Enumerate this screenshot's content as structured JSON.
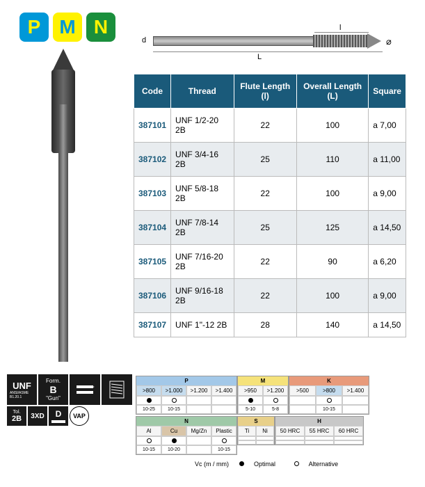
{
  "badges": {
    "p": "P",
    "m": "M",
    "n": "N"
  },
  "dimensions": {
    "d": "d",
    "L": "L",
    "l": "l",
    "dia": "⌀"
  },
  "table": {
    "headers": {
      "code": "Code",
      "thread": "Thread",
      "flute": "Flute Length (l)",
      "overall": "Overall Length (L)",
      "square": "Square"
    },
    "rows": [
      {
        "code": "387101",
        "thread": "UNF 1/2-20 2B",
        "flute": "22",
        "overall": "100",
        "square": "a 7,00"
      },
      {
        "code": "387102",
        "thread": "UNF 3/4-16 2B",
        "flute": "25",
        "overall": "110",
        "square": "a 11,00"
      },
      {
        "code": "387103",
        "thread": "UNF 5/8-18 2B",
        "flute": "22",
        "overall": "100",
        "square": "a 9,00"
      },
      {
        "code": "387104",
        "thread": "UNF 7/8-14 2B",
        "flute": "25",
        "overall": "125",
        "square": "a 14,50"
      },
      {
        "code": "387105",
        "thread": "UNF 7/16-20 2B",
        "flute": "22",
        "overall": "90",
        "square": "a 6,20"
      },
      {
        "code": "387106",
        "thread": "UNF 9/16-18 2B",
        "flute": "22",
        "overall": "100",
        "square": "a 9,00"
      },
      {
        "code": "387107",
        "thread": "UNF 1\"-12 2B",
        "flute": "28",
        "overall": "140",
        "square": "a 14,50"
      }
    ]
  },
  "specs": {
    "unf_title": "UNF",
    "unf_sub": "ANSI/ASME B1.20.1",
    "form_title": "Form.",
    "form_b": "B",
    "form_gun": "\"Gun\"",
    "tol_title": "Tol.",
    "tol_val": "2B",
    "xd": "3XD",
    "d": "D",
    "vap": "VAP"
  },
  "materials": {
    "P": {
      "label": "P",
      "color": "#a3c8e8",
      "cols": [
        ">800",
        ">1.000",
        ">1.200",
        ">1.400"
      ],
      "dots": [
        "filled",
        "open",
        "",
        ""
      ],
      "ranges": [
        "10-25",
        "10-15",
        "",
        ""
      ]
    },
    "M": {
      "label": "M",
      "color": "#f5e27a",
      "cols": [
        ">950",
        ">1.200"
      ],
      "dots": [
        "filled",
        "open"
      ],
      "ranges": [
        "5-10",
        "5-8"
      ]
    },
    "K": {
      "label": "K",
      "color": "#e89a7a",
      "cols": [
        ">500",
        ">800",
        ">1.400"
      ],
      "dots": [
        "",
        "open",
        ""
      ],
      "ranges": [
        "",
        "10-15",
        ""
      ]
    },
    "N": {
      "label": "N",
      "color": "#9fc9a8",
      "cols": [
        "Al",
        "Cu",
        "Mg/Zn",
        "Plastic"
      ],
      "dots": [
        "open",
        "filled",
        "",
        "open"
      ],
      "ranges": [
        "10-15",
        "10-20",
        "",
        "10-15"
      ]
    },
    "S": {
      "label": "S",
      "color": "#e8d08a",
      "cols": [
        "Ti",
        "Ni"
      ],
      "dots": [
        "",
        ""
      ],
      "ranges": [
        "",
        ""
      ]
    },
    "H": {
      "label": "H",
      "color": "#c8c8c8",
      "cols": [
        "50 HRC",
        "55 HRC",
        "60 HRC"
      ],
      "dots": [
        "",
        "",
        ""
      ],
      "ranges": [
        "",
        "",
        ""
      ]
    }
  },
  "legend": {
    "vc": "Vc (m / mm)",
    "optimal": "Optimal",
    "alternative": "Alternative"
  }
}
